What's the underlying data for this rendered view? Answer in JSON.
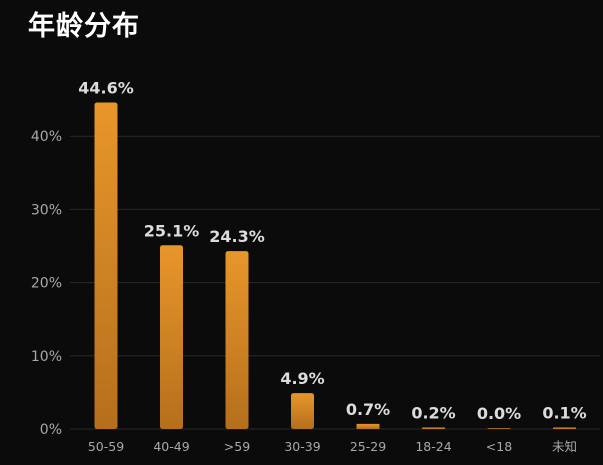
{
  "title": "年龄分布",
  "colors": {
    "background": "#0b0b0b",
    "bar_top": "#e8962a",
    "bar_bottom": "#b56f1c",
    "grid": "#2a2a2a",
    "axis_text": "#a8a8a8",
    "label_text": "#dcdcdc"
  },
  "chart_data": {
    "type": "bar",
    "title": "年龄分布",
    "categories": [
      "50-59",
      "40-49",
      ">59",
      "30-39",
      "25-29",
      "18-24",
      "<18",
      "未知"
    ],
    "values": [
      44.6,
      25.1,
      24.3,
      4.9,
      0.7,
      0.2,
      0.0,
      0.1
    ],
    "data_labels": [
      "44.6%",
      "25.1%",
      "24.3%",
      "4.9%",
      "0.7%",
      "0.2%",
      "0.0%",
      "0.1%"
    ],
    "y_ticks": [
      0,
      10,
      20,
      30,
      40
    ],
    "y_tick_labels": [
      "0%",
      "10%",
      "20%",
      "30%",
      "40%"
    ],
    "ylim": [
      0,
      40
    ],
    "grid": true,
    "xlabel": "",
    "ylabel": ""
  }
}
